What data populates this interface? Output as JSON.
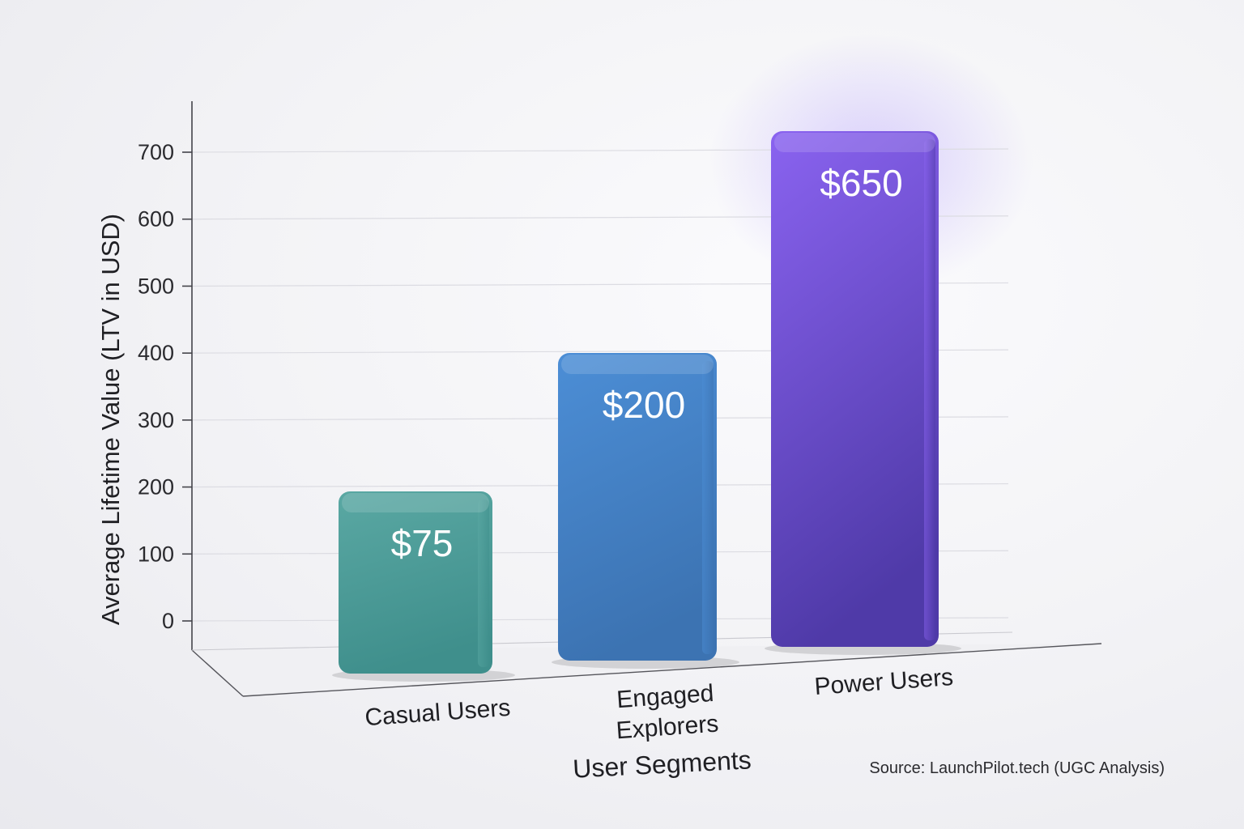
{
  "chart_data": {
    "type": "bar",
    "categories": [
      "Casual Users",
      "Engaged Explorers",
      "Power Users"
    ],
    "category_lines": [
      [
        "Casual Users"
      ],
      [
        "Engaged",
        "Explorers"
      ],
      [
        "Power Users"
      ]
    ],
    "values": [
      75,
      200,
      650
    ],
    "data_labels": [
      "$75",
      "$200",
      "$650"
    ],
    "bar_colors": [
      [
        "#5aa8a3",
        "#3f8f8c"
      ],
      [
        "#4c8ed6",
        "#3c73b2"
      ],
      [
        "#8a63f0",
        "#4f3aa8"
      ]
    ],
    "title": "",
    "xlabel": "User Segments",
    "ylabel": "Average Lifetime Value (LTV in USD)",
    "yticks": [
      0,
      100,
      200,
      300,
      400,
      500,
      600,
      700
    ],
    "ylim": [
      0,
      700
    ],
    "grid": true,
    "source": "Source: LaunchPilot.tech (UGC Analysis)"
  }
}
